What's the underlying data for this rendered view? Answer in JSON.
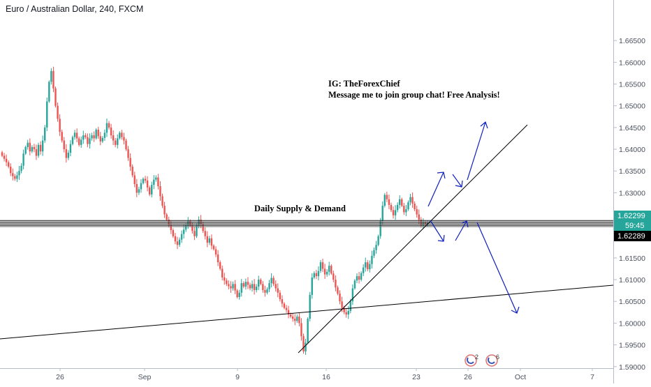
{
  "header": {
    "symbol_title": "Euro / Australian Dollar, 240, FXCM"
  },
  "annotations": {
    "ig_line": "IG: TheForexChief",
    "message_line": "Message me to join group chat! Free Analysis!",
    "zone_label": "Daily Supply & Demand"
  },
  "price_badges": {
    "bid_price": "1.62299",
    "countdown": "59:45",
    "ask_price": "1.62289"
  },
  "event_markers": [
    {
      "icon": "event-flag-icon",
      "count": "2"
    },
    {
      "icon": "event-flag-icon",
      "count": "6"
    }
  ],
  "colors": {
    "bull": "#26a69a",
    "bear": "#ef5350",
    "arrows": "#0d1fbf",
    "trendline": "#000000",
    "bid_badge": "#26a69a",
    "ask_badge": "#000000"
  },
  "chart_data": {
    "type": "candlestick",
    "title": "Euro / Australian Dollar, 240, FXCM",
    "interval": "240",
    "ylim": [
      1.5898,
      1.6692
    ],
    "y_ticks": [
      "1.66500",
      "1.66000",
      "1.65500",
      "1.65000",
      "1.64500",
      "1.64000",
      "1.63500",
      "1.63000",
      "1.62500",
      "1.62000",
      "1.61500",
      "1.61000",
      "1.60500",
      "1.60000",
      "1.59500",
      "1.59000"
    ],
    "x_ticks": [
      "26",
      "Sep",
      "9",
      "16",
      "23",
      "26",
      "Oct",
      "7"
    ],
    "last_price": 1.62299,
    "ask_price": 1.62289,
    "supply_demand_zone": [
      1.6222,
      1.6236
    ],
    "candle_closes": [
      1.6385,
      1.6378,
      1.637,
      1.636,
      1.6345,
      1.6338,
      1.6332,
      1.634,
      1.635,
      1.6362,
      1.639,
      1.6405,
      1.6415,
      1.6395,
      1.6405,
      1.64,
      1.6385,
      1.641,
      1.6395,
      1.642,
      1.645,
      1.651,
      1.6555,
      1.658,
      1.654,
      1.65,
      1.647,
      1.644,
      1.642,
      1.64,
      1.638,
      1.6392,
      1.6412,
      1.6428,
      1.6438,
      1.6425,
      1.641,
      1.6422,
      1.6432,
      1.6428,
      1.6412,
      1.6425,
      1.6432,
      1.6425,
      1.6445,
      1.643,
      1.6418,
      1.6426,
      1.6438,
      1.646,
      1.645,
      1.6432,
      1.642,
      1.641,
      1.6425,
      1.6438,
      1.6428,
      1.642,
      1.64,
      1.638,
      1.636,
      1.634,
      1.632,
      1.63,
      1.6308,
      1.6322,
      1.6332,
      1.6328,
      1.6312,
      1.6296,
      1.6318,
      1.633,
      1.6335,
      1.6315,
      1.6292,
      1.627,
      1.625,
      1.6238,
      1.6226,
      1.6214,
      1.62,
      1.6188,
      1.618,
      1.6192,
      1.6205,
      1.6215,
      1.6225,
      1.6235,
      1.6225,
      1.6212,
      1.62,
      1.6225,
      1.6238,
      1.6228,
      1.6212,
      1.62,
      1.6185,
      1.6195,
      1.6178,
      1.617,
      1.6158,
      1.614,
      1.6125,
      1.6105,
      1.6098,
      1.609,
      1.6085,
      1.608,
      1.609,
      1.6075,
      1.606,
      1.607,
      1.6092,
      1.6084,
      1.6095,
      1.6088,
      1.608,
      1.609,
      1.6076,
      1.6084,
      1.61,
      1.609,
      1.6076,
      1.607,
      1.6078,
      1.6092,
      1.6104,
      1.609,
      1.608,
      1.607,
      1.6055,
      1.6045,
      1.6035,
      1.603,
      1.602,
      1.6015,
      1.601,
      1.6005,
      1.6015,
      1.6,
      1.597,
      1.5935,
      1.5955,
      1.601,
      1.6065,
      1.6105,
      1.6115,
      1.6108,
      1.612,
      1.614,
      1.6125,
      1.6112,
      1.6118,
      1.6132,
      1.6114,
      1.61,
      1.6082,
      1.6068,
      1.605,
      1.6035,
      1.6025,
      1.602,
      1.6028,
      1.605,
      1.608,
      1.6098,
      1.6108,
      1.61,
      1.6115,
      1.6128,
      1.614,
      1.6124,
      1.6136,
      1.6155,
      1.6168,
      1.618,
      1.62,
      1.6235,
      1.627,
      1.6295,
      1.6285,
      1.6272,
      1.626,
      1.6248,
      1.626,
      1.6272,
      1.6285,
      1.627,
      1.6255,
      1.6262,
      1.6278,
      1.629,
      1.6275,
      1.6262,
      1.625,
      1.6238,
      1.6225,
      1.6232,
      1.6228,
      1.623
    ]
  }
}
